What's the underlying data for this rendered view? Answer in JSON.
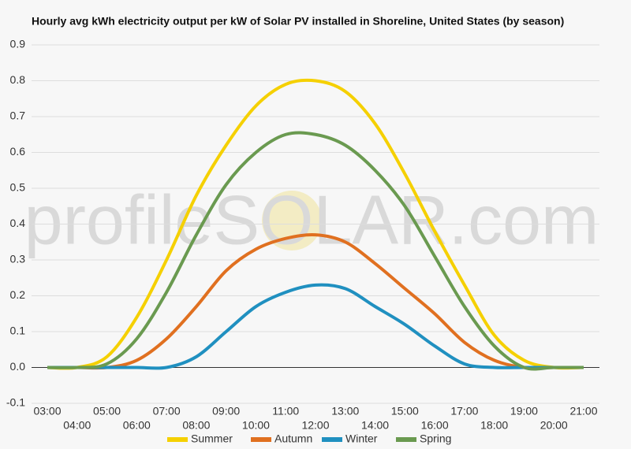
{
  "chart_data": {
    "type": "line",
    "title": "Hourly avg kWh electricity output per kW of Solar PV installed in Shoreline, United States (by season)",
    "watermark": "profileSOLAR.com",
    "categories": [
      "03:00",
      "04:00",
      "05:00",
      "06:00",
      "07:00",
      "08:00",
      "09:00",
      "10:00",
      "11:00",
      "12:00",
      "13:00",
      "14:00",
      "15:00",
      "16:00",
      "17:00",
      "18:00",
      "19:00",
      "20:00",
      "21:00"
    ],
    "series": [
      {
        "name": "Summer",
        "color": "#f5d000",
        "values": [
          0,
          0,
          0.03,
          0.14,
          0.3,
          0.48,
          0.62,
          0.73,
          0.79,
          0.8,
          0.77,
          0.68,
          0.54,
          0.38,
          0.23,
          0.09,
          0.02,
          0,
          0
        ]
      },
      {
        "name": "Autumn",
        "color": "#e07020",
        "values": [
          0,
          0,
          0,
          0.02,
          0.08,
          0.17,
          0.27,
          0.33,
          0.36,
          0.37,
          0.35,
          0.29,
          0.22,
          0.15,
          0.07,
          0.02,
          0,
          0,
          0
        ]
      },
      {
        "name": "Winter",
        "color": "#2090c0",
        "values": [
          0,
          0,
          0,
          0,
          0,
          0.03,
          0.1,
          0.17,
          0.21,
          0.23,
          0.22,
          0.17,
          0.12,
          0.06,
          0.01,
          0,
          0,
          0,
          0
        ]
      },
      {
        "name": "Spring",
        "color": "#6a9a50",
        "values": [
          0,
          0,
          0.01,
          0.08,
          0.21,
          0.37,
          0.51,
          0.6,
          0.65,
          0.65,
          0.62,
          0.55,
          0.45,
          0.31,
          0.17,
          0.06,
          0,
          0,
          0
        ]
      }
    ],
    "ylim": [
      -0.1,
      0.9
    ],
    "yticks": [
      -0.1,
      {
        "value": 0,
        "label": "0.0"
      },
      0.1,
      0.2,
      0.3,
      0.4,
      0.5,
      0.6,
      0.7,
      0.8,
      0.9
    ],
    "grid": true,
    "legend": "bottom"
  }
}
